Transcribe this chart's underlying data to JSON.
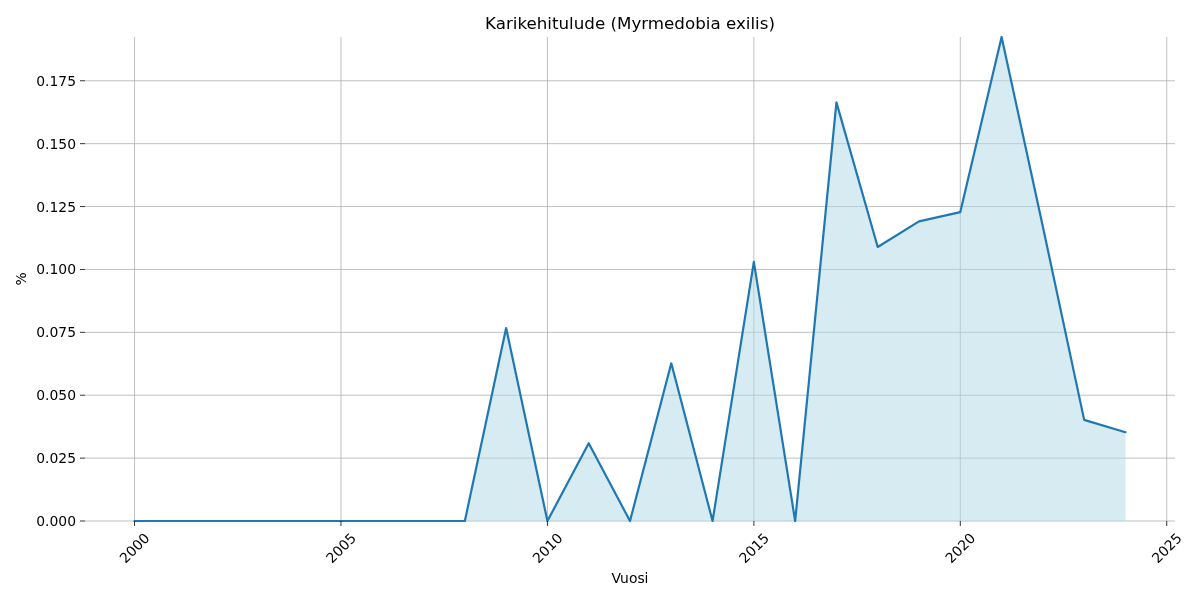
{
  "chart_data": {
    "type": "area",
    "title": "Karikehitulude (Myrmedobia exilis)",
    "xlabel": "Vuosi",
    "ylabel": "%",
    "x": [
      2000,
      2001,
      2002,
      2003,
      2004,
      2005,
      2006,
      2007,
      2008,
      2009,
      2010,
      2011,
      2012,
      2013,
      2014,
      2015,
      2016,
      2017,
      2018,
      2019,
      2020,
      2021,
      2022,
      2023,
      2024
    ],
    "values": [
      0,
      0,
      0,
      0,
      0,
      0,
      0,
      0,
      0,
      0.0767,
      0,
      0.0309,
      0,
      0.0627,
      0,
      0.103,
      0,
      0.1664,
      0.1089,
      0.1191,
      0.1228,
      0.1924,
      0.117,
      0.0402,
      0.0353
    ],
    "color": "#1f77b4",
    "xlim": [
      1998.8,
      2025.2
    ],
    "xticks": [
      2000,
      2005,
      2010,
      2015,
      2020,
      2025
    ],
    "ylim": [
      0,
      0.1924
    ],
    "yticks": [
      {
        "value": 0,
        "label": "0.000"
      },
      {
        "value": 0.025,
        "label": "0.025"
      },
      {
        "value": 0.05,
        "label": "0.050"
      },
      {
        "value": 0.075,
        "label": "0.075"
      },
      {
        "value": 0.1,
        "label": "0.100"
      },
      {
        "value": 0.125,
        "label": "0.125"
      },
      {
        "value": 0.15,
        "label": "0.150"
      },
      {
        "value": 0.175,
        "label": "0.175"
      }
    ],
    "grid": true
  }
}
